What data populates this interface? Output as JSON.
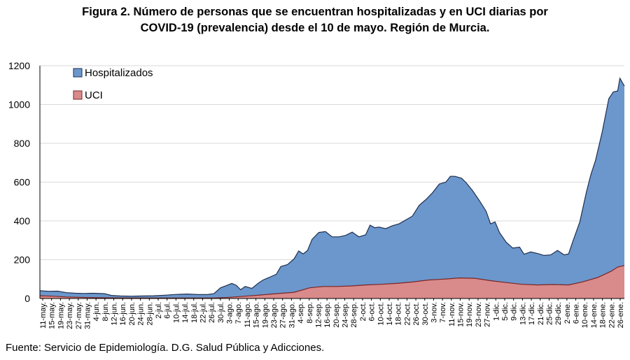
{
  "figure": {
    "title_line1": "Figura 2. Número de personas que se encuentran hospitalizadas y en UCI diarias por",
    "title_line2": "COVID-19 (prevalencia) desde el 10 de mayo. Región de Murcia.",
    "source": "Fuente: Servicio de Epidemiología. D.G. Salud Pública y Adicciones."
  },
  "chart_data": {
    "type": "area",
    "stacked": false,
    "title": "Figura 2. Número de personas que se encuentran hospitalizadas y en UCI diarias por COVID-19 (prevalencia) desde el 10 de mayo. Región de Murcia.",
    "xlabel": "",
    "ylabel": "",
    "ylim": [
      0,
      1200
    ],
    "yticks": [
      0,
      200,
      400,
      600,
      800,
      1000,
      1200
    ],
    "x_start": "2020-05-10",
    "x_end": "2021-01-27",
    "x_tick_labels": [
      "11-may.",
      "15-may.",
      "19-may.",
      "23-may.",
      "27-may.",
      "31-may.",
      "4-jun.",
      "8-jun.",
      "12-jun.",
      "16-jun.",
      "20-jun.",
      "24-jun.",
      "28-jun.",
      "2-jul.",
      "6-jul.",
      "10-jul.",
      "14-jul.",
      "18-jul.",
      "22-jul.",
      "26-jul.",
      "30-jul.",
      "3-ago.",
      "7-ago.",
      "11-ago.",
      "15-ago.",
      "19-ago.",
      "23-ago.",
      "27-ago.",
      "31-ago.",
      "4-sep.",
      "8-sep.",
      "12-sep.",
      "16-sep.",
      "20-sep.",
      "24-sep.",
      "28-sep.",
      "2-oct.",
      "6-oct.",
      "10-oct.",
      "14-oct.",
      "18-oct.",
      "22-oct.",
      "26-oct.",
      "30-oct.",
      "3-nov.",
      "7-nov.",
      "11-nov.",
      "15-nov.",
      "19-nov.",
      "23-nov.",
      "27-nov.",
      "1-dic.",
      "5-dic.",
      "9-dic.",
      "13-dic.",
      "17-dic.",
      "21-dic.",
      "25-dic.",
      "29-dic.",
      "2-ene.",
      "6-ene.",
      "10-ene.",
      "14-ene.",
      "18-ene.",
      "22-ene.",
      "26-ene."
    ],
    "grid": "horizontal",
    "legend": "top-left",
    "series": [
      {
        "name": "Hospitalizados",
        "color": "#6b97cc",
        "edge_color": "#1f2f4f",
        "points": [
          [
            "2020-05-10",
            40
          ],
          [
            "2020-05-14",
            37
          ],
          [
            "2020-05-18",
            38
          ],
          [
            "2020-05-22",
            30
          ],
          [
            "2020-05-26",
            27
          ],
          [
            "2020-05-30",
            26
          ],
          [
            "2020-06-03",
            27
          ],
          [
            "2020-06-08",
            25
          ],
          [
            "2020-06-11",
            16
          ],
          [
            "2020-06-15",
            13
          ],
          [
            "2020-06-20",
            12
          ],
          [
            "2020-06-25",
            13
          ],
          [
            "2020-06-30",
            14
          ],
          [
            "2020-07-05",
            17
          ],
          [
            "2020-07-10",
            21
          ],
          [
            "2020-07-15",
            23
          ],
          [
            "2020-07-20",
            20
          ],
          [
            "2020-07-24",
            20
          ],
          [
            "2020-07-27",
            25
          ],
          [
            "2020-07-30",
            55
          ],
          [
            "2020-08-02",
            68
          ],
          [
            "2020-08-04",
            78
          ],
          [
            "2020-08-06",
            68
          ],
          [
            "2020-08-08",
            45
          ],
          [
            "2020-08-10",
            62
          ],
          [
            "2020-08-13",
            52
          ],
          [
            "2020-08-16",
            80
          ],
          [
            "2020-08-18",
            95
          ],
          [
            "2020-08-21",
            110
          ],
          [
            "2020-08-24",
            125
          ],
          [
            "2020-08-26",
            165
          ],
          [
            "2020-08-29",
            175
          ],
          [
            "2020-09-01",
            205
          ],
          [
            "2020-09-03",
            245
          ],
          [
            "2020-09-05",
            230
          ],
          [
            "2020-09-07",
            248
          ],
          [
            "2020-09-09",
            305
          ],
          [
            "2020-09-12",
            340
          ],
          [
            "2020-09-15",
            345
          ],
          [
            "2020-09-18",
            318
          ],
          [
            "2020-09-21",
            318
          ],
          [
            "2020-09-24",
            325
          ],
          [
            "2020-09-27",
            342
          ],
          [
            "2020-09-30",
            318
          ],
          [
            "2020-10-03",
            328
          ],
          [
            "2020-10-05",
            378
          ],
          [
            "2020-10-07",
            365
          ],
          [
            "2020-10-09",
            368
          ],
          [
            "2020-10-12",
            360
          ],
          [
            "2020-10-15",
            375
          ],
          [
            "2020-10-18",
            385
          ],
          [
            "2020-10-21",
            405
          ],
          [
            "2020-10-24",
            425
          ],
          [
            "2020-10-27",
            480
          ],
          [
            "2020-10-30",
            510
          ],
          [
            "2020-11-02",
            545
          ],
          [
            "2020-11-05",
            590
          ],
          [
            "2020-11-08",
            600
          ],
          [
            "2020-11-10",
            630
          ],
          [
            "2020-11-12",
            630
          ],
          [
            "2020-11-15",
            620
          ],
          [
            "2020-11-17",
            598
          ],
          [
            "2020-11-20",
            555
          ],
          [
            "2020-11-23",
            505
          ],
          [
            "2020-11-26",
            450
          ],
          [
            "2020-11-28",
            385
          ],
          [
            "2020-11-30",
            395
          ],
          [
            "2020-12-02",
            340
          ],
          [
            "2020-12-05",
            290
          ],
          [
            "2020-12-08",
            260
          ],
          [
            "2020-12-11",
            265
          ],
          [
            "2020-12-13",
            228
          ],
          [
            "2020-12-16",
            240
          ],
          [
            "2020-12-19",
            232
          ],
          [
            "2020-12-22",
            222
          ],
          [
            "2020-12-25",
            225
          ],
          [
            "2020-12-28",
            248
          ],
          [
            "2020-12-31",
            225
          ],
          [
            "2021-01-02",
            230
          ],
          [
            "2021-01-04",
            298
          ],
          [
            "2021-01-07",
            395
          ],
          [
            "2021-01-10",
            550
          ],
          [
            "2021-01-12",
            640
          ],
          [
            "2021-01-14",
            710
          ],
          [
            "2021-01-17",
            855
          ],
          [
            "2021-01-20",
            1030
          ],
          [
            "2021-01-22",
            1065
          ],
          [
            "2021-01-24",
            1070
          ],
          [
            "2021-01-25",
            1135
          ],
          [
            "2021-01-27",
            1095
          ]
        ]
      },
      {
        "name": "UCI",
        "color": "#d98a8a",
        "edge_color": "#7a2525",
        "points": [
          [
            "2020-05-10",
            14
          ],
          [
            "2020-05-16",
            12
          ],
          [
            "2020-05-22",
            8
          ],
          [
            "2020-05-28",
            6
          ],
          [
            "2020-06-04",
            4
          ],
          [
            "2020-06-15",
            3
          ],
          [
            "2020-07-01",
            2
          ],
          [
            "2020-07-15",
            2
          ],
          [
            "2020-07-27",
            2
          ],
          [
            "2020-08-03",
            6
          ],
          [
            "2020-08-10",
            12
          ],
          [
            "2020-08-17",
            18
          ],
          [
            "2020-08-24",
            25
          ],
          [
            "2020-09-01",
            32
          ],
          [
            "2020-09-08",
            55
          ],
          [
            "2020-09-14",
            62
          ],
          [
            "2020-09-20",
            62
          ],
          [
            "2020-09-27",
            65
          ],
          [
            "2020-10-03",
            70
          ],
          [
            "2020-10-10",
            73
          ],
          [
            "2020-10-17",
            78
          ],
          [
            "2020-10-24",
            85
          ],
          [
            "2020-10-31",
            95
          ],
          [
            "2020-11-07",
            100
          ],
          [
            "2020-11-14",
            106
          ],
          [
            "2020-11-21",
            104
          ],
          [
            "2020-11-28",
            92
          ],
          [
            "2020-12-05",
            82
          ],
          [
            "2020-12-12",
            73
          ],
          [
            "2020-12-19",
            70
          ],
          [
            "2020-12-26",
            72
          ],
          [
            "2021-01-02",
            70
          ],
          [
            "2021-01-08",
            85
          ],
          [
            "2021-01-15",
            108
          ],
          [
            "2021-01-21",
            140
          ],
          [
            "2021-01-24",
            162
          ],
          [
            "2021-01-27",
            170
          ]
        ]
      }
    ]
  }
}
